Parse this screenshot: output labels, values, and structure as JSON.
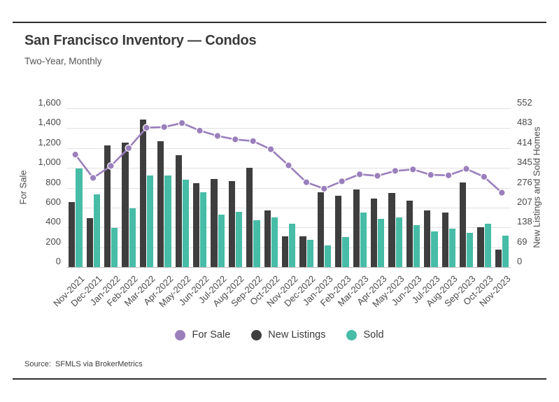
{
  "header": {
    "title": "San Francisco Inventory — Condos",
    "subtitle": "Two-Year, Monthly"
  },
  "source": "Source:  SFMLS via BrokerMetrics",
  "chart_data": {
    "type": "combo (grouped bars + line)",
    "title": "San Francisco Inventory — Condos",
    "subtitle": "Two-Year, Monthly",
    "grid": true,
    "legend_position": "bottom",
    "x_tick_rotation": -45,
    "categories": [
      "Nov-2021",
      "Dec-2021",
      "Jan-2022",
      "Feb-2022",
      "Mar-2022",
      "Apr-2022",
      "May-2022",
      "Jun-2022",
      "Jul-2022",
      "Aug-2022",
      "Sep-2022",
      "Oct-2022",
      "Nov-2022",
      "Dec-2022",
      "Jan-2023",
      "Feb-2023",
      "Mar-2023",
      "Apr-2023",
      "May-2023",
      "Jun-2023",
      "Jul-2023",
      "Aug-2023",
      "Sep-2023",
      "Oct-2023",
      "Nov-2023"
    ],
    "axes": {
      "left": {
        "title": "For Sale",
        "min": 0,
        "max": 1600,
        "ticks": [
          "1,600",
          "1,400",
          "1,200",
          "1,000",
          "800",
          "600",
          "400",
          "200",
          "0"
        ]
      },
      "right": {
        "title": "New Listings and Sold Homes",
        "min": 0,
        "max": 552,
        "ticks": [
          "552",
          "483",
          "414",
          "345",
          "276",
          "207",
          "138",
          "69",
          "0"
        ]
      }
    },
    "series": [
      {
        "name": "For Sale",
        "kind": "line",
        "axis": "left",
        "color": "#9b7fbc",
        "values": [
          1134,
          899,
          1019,
          1200,
          1405,
          1412,
          1452,
          1376,
          1322,
          1287,
          1270,
          1188,
          1025,
          855,
          790,
          865,
          935,
          920,
          970,
          985,
          930,
          925,
          990,
          910,
          750
        ]
      },
      {
        "name": "New Listings",
        "kind": "bar",
        "axis": "right",
        "color": "#3e3e3e",
        "values": [
          226,
          170,
          424,
          434,
          514,
          437,
          389,
          292,
          306,
          300,
          346,
          196,
          108,
          106,
          260,
          249,
          270,
          239,
          257,
          230,
          197,
          190,
          295,
          138,
          61
        ]
      },
      {
        "name": "Sold",
        "kind": "bar",
        "axis": "right",
        "color": "#47bca6",
        "values": [
          343,
          253,
          136,
          205,
          319,
          319,
          304,
          260,
          183,
          192,
          162,
          173,
          150,
          96,
          76,
          105,
          191,
          168,
          173,
          146,
          124,
          135,
          120,
          150,
          110
        ]
      }
    ]
  }
}
